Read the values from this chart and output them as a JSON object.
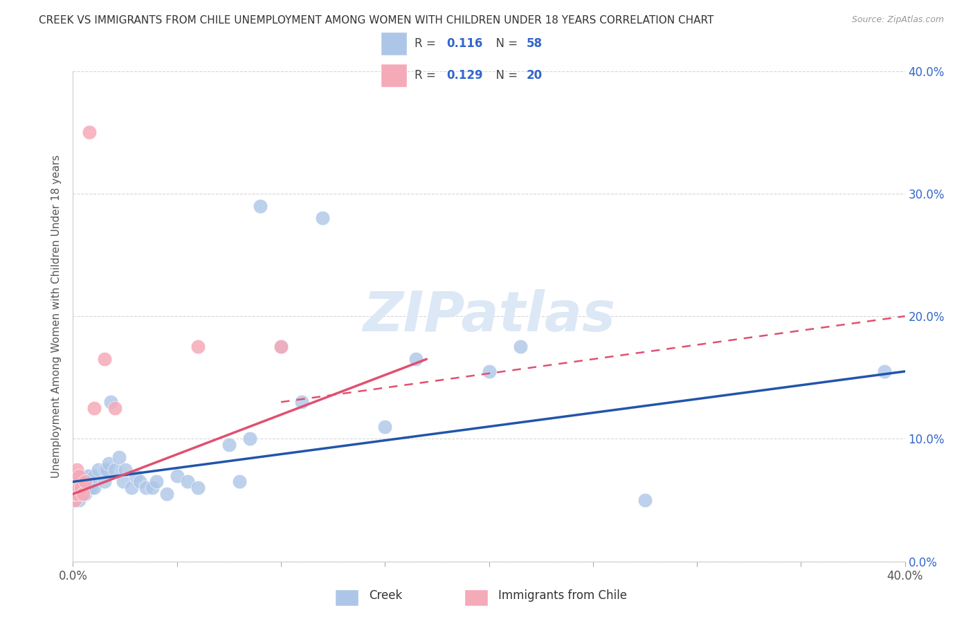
{
  "title": "CREEK VS IMMIGRANTS FROM CHILE UNEMPLOYMENT AMONG WOMEN WITH CHILDREN UNDER 18 YEARS CORRELATION CHART",
  "source": "Source: ZipAtlas.com",
  "ylabel": "Unemployment Among Women with Children Under 18 years",
  "xlim": [
    0.0,
    0.4
  ],
  "ylim": [
    0.0,
    0.4
  ],
  "creek_R": "0.116",
  "creek_N": "58",
  "chile_R": "0.129",
  "chile_N": "20",
  "creek_color": "#adc6e8",
  "chile_color": "#f5aab8",
  "creek_line_color": "#2255aa",
  "chile_line_color": "#e05070",
  "watermark_color": "#dce8f5",
  "watermark_text": "ZIPatlas",
  "legend_text_color": "#3366cc",
  "grid_color": "#cccccc",
  "background_color": "#ffffff",
  "creek_points_x": [
    0.001,
    0.001,
    0.001,
    0.002,
    0.002,
    0.002,
    0.002,
    0.003,
    0.003,
    0.003,
    0.003,
    0.003,
    0.004,
    0.004,
    0.005,
    0.005,
    0.006,
    0.006,
    0.007,
    0.007,
    0.008,
    0.008,
    0.009,
    0.01,
    0.01,
    0.012,
    0.015,
    0.015,
    0.016,
    0.017,
    0.018,
    0.02,
    0.022,
    0.024,
    0.025,
    0.028,
    0.03,
    0.032,
    0.035,
    0.038,
    0.04,
    0.045,
    0.05,
    0.055,
    0.06,
    0.075,
    0.08,
    0.085,
    0.09,
    0.1,
    0.11,
    0.12,
    0.15,
    0.165,
    0.2,
    0.215,
    0.275,
    0.39
  ],
  "creek_points_y": [
    0.05,
    0.06,
    0.065,
    0.055,
    0.06,
    0.065,
    0.07,
    0.05,
    0.055,
    0.06,
    0.065,
    0.07,
    0.06,
    0.065,
    0.055,
    0.065,
    0.055,
    0.065,
    0.06,
    0.07,
    0.06,
    0.07,
    0.06,
    0.06,
    0.07,
    0.075,
    0.065,
    0.075,
    0.075,
    0.08,
    0.13,
    0.075,
    0.085,
    0.065,
    0.075,
    0.06,
    0.07,
    0.065,
    0.06,
    0.06,
    0.065,
    0.055,
    0.07,
    0.065,
    0.06,
    0.095,
    0.065,
    0.1,
    0.29,
    0.175,
    0.13,
    0.28,
    0.11,
    0.165,
    0.155,
    0.175,
    0.05,
    0.155
  ],
  "chile_points_x": [
    0.001,
    0.001,
    0.001,
    0.001,
    0.001,
    0.002,
    0.002,
    0.002,
    0.002,
    0.003,
    0.003,
    0.004,
    0.005,
    0.006,
    0.008,
    0.01,
    0.015,
    0.02,
    0.06,
    0.1
  ],
  "chile_points_y": [
    0.05,
    0.055,
    0.06,
    0.065,
    0.07,
    0.055,
    0.06,
    0.065,
    0.075,
    0.06,
    0.07,
    0.06,
    0.055,
    0.065,
    0.35,
    0.125,
    0.165,
    0.125,
    0.175,
    0.175
  ],
  "creek_trend": [
    0.065,
    0.155
  ],
  "chile_trend": [
    0.055,
    0.165
  ],
  "chile_dashed_trend": [
    0.065,
    0.2
  ]
}
